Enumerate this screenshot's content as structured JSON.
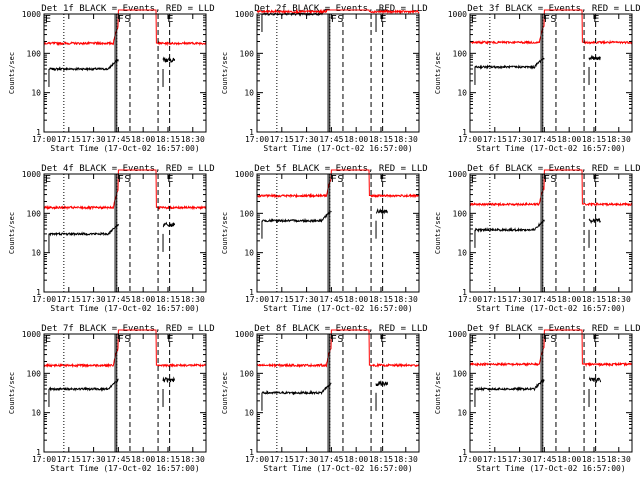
{
  "colors": {
    "events": "#000000",
    "lld": "#ff0000",
    "axes": "#000000",
    "background": "#ffffff"
  },
  "chart_data": [
    {
      "type": "line",
      "title": "Det 1f BLACK = Events, RED = LLD",
      "xlabel": "Start Time (17-Oct-02 16:57:00)",
      "ylabel": "Counts/sec",
      "y_scale": "log",
      "ylim": [
        1,
        1000
      ],
      "x_range": [
        "17:00",
        "18:38"
      ],
      "x_tick_labels": [
        "17:00",
        "17:15",
        "17:30",
        "17:45",
        "18:00",
        "18:15",
        "18:30"
      ],
      "y_tick_labels": [
        "1",
        "10",
        "100",
        "1000"
      ],
      "grid": false,
      "markers": [
        {
          "label": "E",
          "time": "17:00"
        },
        {
          "label": "F",
          "time": "17:44"
        },
        {
          "label": "S",
          "time": "17:48"
        },
        {
          "label": "E",
          "time": "18:14"
        }
      ],
      "dotted_lines": [
        "17:12",
        "17:44"
      ],
      "solid_lines": [
        "17:43",
        "17:44"
      ],
      "dashed_lines": [
        "17:52",
        "18:09",
        "18:16"
      ],
      "series": [
        {
          "name": "Events",
          "color": "#000000",
          "baseline": 40,
          "segments": [
            [
              "17:03",
              "17:45"
            ],
            [
              "18:12",
              "18:19"
            ]
          ]
        },
        {
          "name": "LLD",
          "color": "#ff0000",
          "baseline": 180,
          "segments": [
            [
              "17:00",
              "18:38"
            ]
          ]
        }
      ]
    },
    {
      "type": "line",
      "title": "Det 2f BLACK = Events, RED = LLD",
      "xlabel": "Start Time (17-Oct-02 16:57:00)",
      "ylabel": "Counts/sec",
      "y_scale": "log",
      "ylim": [
        1,
        1000
      ],
      "x_range": [
        "17:00",
        "18:38"
      ],
      "x_tick_labels": [
        "17:00",
        "17:15",
        "17:30",
        "17:45",
        "18:00",
        "18:15",
        "18:30"
      ],
      "y_tick_labels": [
        "1",
        "10",
        "100",
        "1000"
      ],
      "grid": false,
      "markers": [
        {
          "label": "F",
          "time": "17:44"
        },
        {
          "label": "S",
          "time": "17:48"
        },
        {
          "label": "E",
          "time": "18:14"
        }
      ],
      "dotted_lines": [
        "17:12",
        "17:44"
      ],
      "solid_lines": [
        "17:43",
        "17:44"
      ],
      "dashed_lines": [
        "17:52",
        "18:09",
        "18:16"
      ],
      "series": [
        {
          "name": "Events",
          "color": "#000000",
          "baseline": 1000,
          "segments": [
            [
              "17:03",
              "17:45"
            ],
            [
              "18:12",
              "18:19"
            ]
          ]
        },
        {
          "name": "LLD",
          "color": "#ff0000",
          "baseline": 1150,
          "segments": [
            [
              "17:00",
              "18:38"
            ]
          ]
        }
      ]
    },
    {
      "type": "line",
      "title": "Det 3f BLACK = Events, RED = LLD",
      "xlabel": "Start Time (17-Oct-02 16:57:00)",
      "ylabel": "Counts/sec",
      "y_scale": "log",
      "ylim": [
        1,
        1000
      ],
      "x_range": [
        "17:00",
        "18:38"
      ],
      "x_tick_labels": [
        "17:00",
        "17:15",
        "17:30",
        "17:45",
        "18:00",
        "18:15",
        "18:30"
      ],
      "y_tick_labels": [
        "1",
        "10",
        "100",
        "1000"
      ],
      "grid": false,
      "markers": [
        {
          "label": "E",
          "time": "17:00"
        },
        {
          "label": "F",
          "time": "17:44"
        },
        {
          "label": "S",
          "time": "17:48"
        },
        {
          "label": "E",
          "time": "18:14"
        }
      ],
      "dotted_lines": [
        "17:12",
        "17:44"
      ],
      "solid_lines": [
        "17:43",
        "17:44"
      ],
      "dashed_lines": [
        "17:52",
        "18:09",
        "18:16"
      ],
      "series": [
        {
          "name": "Events",
          "color": "#000000",
          "baseline": 45,
          "segments": [
            [
              "17:03",
              "17:45"
            ],
            [
              "18:12",
              "18:19"
            ]
          ]
        },
        {
          "name": "LLD",
          "color": "#ff0000",
          "baseline": 190,
          "segments": [
            [
              "17:00",
              "18:38"
            ]
          ]
        }
      ]
    },
    {
      "type": "line",
      "title": "Det 4f BLACK = Events, RED = LLD",
      "xlabel": "Start Time (17-Oct-02 16:57:00)",
      "ylabel": "Counts/sec",
      "y_scale": "log",
      "ylim": [
        1,
        1000
      ],
      "x_range": [
        "17:00",
        "18:38"
      ],
      "x_tick_labels": [
        "17:00",
        "17:15",
        "17:30",
        "17:45",
        "18:00",
        "18:15",
        "18:30"
      ],
      "y_tick_labels": [
        "1",
        "10",
        "100",
        "1000"
      ],
      "grid": false,
      "markers": [
        {
          "label": "E",
          "time": "17:00"
        },
        {
          "label": "F",
          "time": "17:44"
        },
        {
          "label": "S",
          "time": "17:48"
        },
        {
          "label": "E",
          "time": "18:14"
        }
      ],
      "dotted_lines": [
        "17:12",
        "17:44"
      ],
      "solid_lines": [
        "17:43",
        "17:44"
      ],
      "dashed_lines": [
        "17:52",
        "18:09",
        "18:16"
      ],
      "series": [
        {
          "name": "Events",
          "color": "#000000",
          "baseline": 30,
          "segments": [
            [
              "17:03",
              "17:45"
            ],
            [
              "18:12",
              "18:19"
            ]
          ]
        },
        {
          "name": "LLD",
          "color": "#ff0000",
          "baseline": 140,
          "segments": [
            [
              "17:00",
              "18:38"
            ]
          ]
        }
      ]
    },
    {
      "type": "line",
      "title": "Det 5f BLACK = Events, RED = LLD",
      "xlabel": "Start Time (17-Oct-02 16:57:00)",
      "ylabel": "Counts/sec",
      "y_scale": "log",
      "ylim": [
        1,
        1000
      ],
      "x_range": [
        "17:00",
        "18:38"
      ],
      "x_tick_labels": [
        "17:00",
        "17:15",
        "17:30",
        "17:45",
        "18:00",
        "18:15",
        "18:30"
      ],
      "y_tick_labels": [
        "1",
        "10",
        "100",
        "1000"
      ],
      "grid": false,
      "markers": [
        {
          "label": "F",
          "time": "17:44"
        },
        {
          "label": "S",
          "time": "17:48"
        },
        {
          "label": "E",
          "time": "18:14"
        }
      ],
      "dotted_lines": [
        "17:12",
        "17:44"
      ],
      "solid_lines": [
        "17:43",
        "17:44"
      ],
      "dashed_lines": [
        "17:52",
        "18:09",
        "18:16"
      ],
      "series": [
        {
          "name": "Events",
          "color": "#000000",
          "baseline": 65,
          "segments": [
            [
              "17:03",
              "17:45"
            ],
            [
              "18:12",
              "18:19"
            ]
          ]
        },
        {
          "name": "LLD",
          "color": "#ff0000",
          "baseline": 280,
          "segments": [
            [
              "17:00",
              "18:38"
            ]
          ]
        }
      ]
    },
    {
      "type": "line",
      "title": "Det 6f BLACK = Events, RED = LLD",
      "xlabel": "Start Time (17-Oct-02 16:57:00)",
      "ylabel": "Counts/sec",
      "y_scale": "log",
      "ylim": [
        1,
        1000
      ],
      "x_range": [
        "17:00",
        "18:38"
      ],
      "x_tick_labels": [
        "17:00",
        "17:15",
        "17:30",
        "17:45",
        "18:00",
        "18:15",
        "18:30"
      ],
      "y_tick_labels": [
        "1",
        "10",
        "100",
        "1000"
      ],
      "grid": false,
      "markers": [
        {
          "label": "E",
          "time": "17:00"
        },
        {
          "label": "F",
          "time": "17:44"
        },
        {
          "label": "S",
          "time": "17:48"
        },
        {
          "label": "E",
          "time": "18:14"
        }
      ],
      "dotted_lines": [
        "17:12",
        "17:44"
      ],
      "solid_lines": [
        "17:43",
        "17:44"
      ],
      "dashed_lines": [
        "17:52",
        "18:09",
        "18:16"
      ],
      "series": [
        {
          "name": "Events",
          "color": "#000000",
          "baseline": 38,
          "segments": [
            [
              "17:03",
              "17:45"
            ],
            [
              "18:12",
              "18:19"
            ]
          ]
        },
        {
          "name": "LLD",
          "color": "#ff0000",
          "baseline": 170,
          "segments": [
            [
              "17:00",
              "18:38"
            ]
          ]
        }
      ]
    },
    {
      "type": "line",
      "title": "Det 7f BLACK = Events, RED = LLD",
      "xlabel": "Start Time (17-Oct-02 16:57:00)",
      "ylabel": "Counts/sec",
      "y_scale": "log",
      "ylim": [
        1,
        1000
      ],
      "x_range": [
        "17:00",
        "18:38"
      ],
      "x_tick_labels": [
        "17:00",
        "17:15",
        "17:30",
        "17:45",
        "18:00",
        "18:15",
        "18:30"
      ],
      "y_tick_labels": [
        "1",
        "10",
        "100",
        "1000"
      ],
      "grid": false,
      "markers": [
        {
          "label": "E",
          "time": "17:00"
        },
        {
          "label": "F",
          "time": "17:44"
        },
        {
          "label": "S",
          "time": "17:48"
        },
        {
          "label": "E",
          "time": "18:14"
        }
      ],
      "dotted_lines": [
        "17:12",
        "17:44"
      ],
      "solid_lines": [
        "17:43",
        "17:44"
      ],
      "dashed_lines": [
        "17:52",
        "18:09",
        "18:16"
      ],
      "series": [
        {
          "name": "Events",
          "color": "#000000",
          "baseline": 40,
          "segments": [
            [
              "17:03",
              "17:45"
            ],
            [
              "18:12",
              "18:19"
            ]
          ]
        },
        {
          "name": "LLD",
          "color": "#ff0000",
          "baseline": 160,
          "segments": [
            [
              "17:00",
              "18:38"
            ]
          ]
        }
      ]
    },
    {
      "type": "line",
      "title": "Det 8f BLACK = Events, RED = LLD",
      "xlabel": "Start Time (17-Oct-02 16:57:00)",
      "ylabel": "Counts/sec",
      "y_scale": "log",
      "ylim": [
        1,
        1000
      ],
      "x_range": [
        "17:00",
        "18:38"
      ],
      "x_tick_labels": [
        "17:00",
        "17:15",
        "17:30",
        "17:45",
        "18:00",
        "18:15",
        "18:30"
      ],
      "y_tick_labels": [
        "1",
        "10",
        "100",
        "1000"
      ],
      "grid": false,
      "markers": [
        {
          "label": "E",
          "time": "17:00"
        },
        {
          "label": "F",
          "time": "17:44"
        },
        {
          "label": "S",
          "time": "17:48"
        },
        {
          "label": "E",
          "time": "18:14"
        }
      ],
      "dotted_lines": [
        "17:12",
        "17:44"
      ],
      "solid_lines": [
        "17:43",
        "17:44"
      ],
      "dashed_lines": [
        "17:52",
        "18:09",
        "18:16"
      ],
      "series": [
        {
          "name": "Events",
          "color": "#000000",
          "baseline": 32,
          "segments": [
            [
              "17:03",
              "17:45"
            ],
            [
              "18:12",
              "18:19"
            ]
          ]
        },
        {
          "name": "LLD",
          "color": "#ff0000",
          "baseline": 160,
          "segments": [
            [
              "17:00",
              "18:38"
            ]
          ]
        }
      ]
    },
    {
      "type": "line",
      "title": "Det 9f BLACK = Events, RED = LLD",
      "xlabel": "Start Time (17-Oct-02 16:57:00)",
      "ylabel": "Counts/sec",
      "y_scale": "log",
      "ylim": [
        1,
        1000
      ],
      "x_range": [
        "17:00",
        "18:38"
      ],
      "x_tick_labels": [
        "17:00",
        "17:15",
        "17:30",
        "17:45",
        "18:00",
        "18:15",
        "18:30"
      ],
      "y_tick_labels": [
        "1",
        "10",
        "100",
        "1000"
      ],
      "grid": false,
      "markers": [
        {
          "label": "E",
          "time": "17:00"
        },
        {
          "label": "F",
          "time": "17:44"
        },
        {
          "label": "S",
          "time": "17:48"
        },
        {
          "label": "E",
          "time": "18:14"
        }
      ],
      "dotted_lines": [
        "17:12",
        "17:44"
      ],
      "solid_lines": [
        "17:43",
        "17:44"
      ],
      "dashed_lines": [
        "17:52",
        "18:09",
        "18:16"
      ],
      "series": [
        {
          "name": "Events",
          "color": "#000000",
          "baseline": 40,
          "segments": [
            [
              "17:03",
              "17:45"
            ],
            [
              "18:12",
              "18:19"
            ]
          ]
        },
        {
          "name": "LLD",
          "color": "#ff0000",
          "baseline": 170,
          "segments": [
            [
              "17:00",
              "18:38"
            ]
          ]
        }
      ]
    }
  ]
}
